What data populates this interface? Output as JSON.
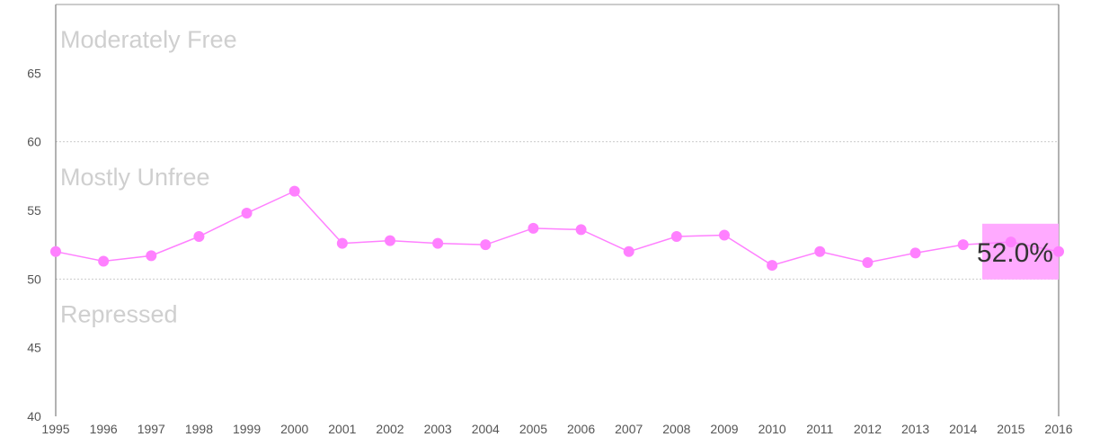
{
  "chart_data": {
    "type": "line",
    "x": [
      1995,
      1996,
      1997,
      1998,
      1999,
      2000,
      2001,
      2002,
      2003,
      2004,
      2005,
      2006,
      2007,
      2008,
      2009,
      2010,
      2011,
      2012,
      2013,
      2014,
      2015,
      2016
    ],
    "x_tick_labels": [
      "1995",
      "1996",
      "1997",
      "1998",
      "1999",
      "2000",
      "2001",
      "2002",
      "2003",
      "2004",
      "2005",
      "2006",
      "2007",
      "2008",
      "2009",
      "2010",
      "2011",
      "2012",
      "2013",
      "2014",
      "2015",
      "2016"
    ],
    "series": [
      {
        "values": [
          52.0,
          51.3,
          51.7,
          53.1,
          54.8,
          56.4,
          52.6,
          52.8,
          52.6,
          52.5,
          53.7,
          53.6,
          52.0,
          53.1,
          53.2,
          51.0,
          52.0,
          51.2,
          51.9,
          52.5,
          52.7,
          52.0
        ],
        "color": "#ff80ff"
      }
    ],
    "ylim": [
      40,
      70
    ],
    "y_ticks": [
      40,
      45,
      50,
      55,
      60,
      65
    ],
    "y_tick_labels": [
      "40",
      "45",
      "50",
      "55",
      "60",
      "65"
    ],
    "gridlines": [
      50,
      60
    ],
    "bands": [
      {
        "label": "Moderately Free",
        "value": 67.5
      },
      {
        "label": "Mostly Unfree",
        "value": 57.5
      },
      {
        "label": "Repressed",
        "value": 47.5
      }
    ],
    "highlight": {
      "label": "52.0%",
      "x": 2016,
      "value": 52.0,
      "color": "#ffaaff"
    },
    "grid": true,
    "xlabel": "",
    "ylabel": "",
    "title": ""
  }
}
